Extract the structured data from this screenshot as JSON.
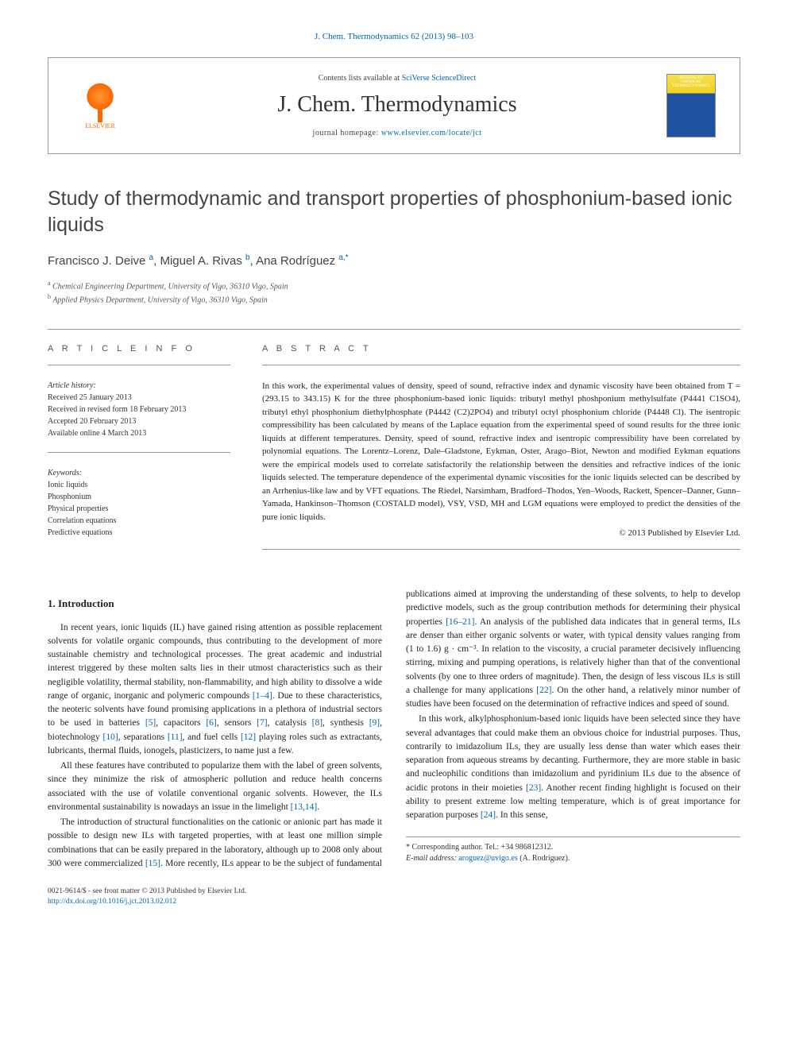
{
  "journal_ref": "J. Chem. Thermodynamics 62 (2013) 98–103",
  "header": {
    "contents_prefix": "Contents lists available at ",
    "contents_link": "SciVerse ScienceDirect",
    "journal_name": "J. Chem. Thermodynamics",
    "homepage_prefix": "journal homepage: ",
    "homepage_link": "www.elsevier.com/locate/jct",
    "elsevier_label": "ELSEVIER",
    "thumb_label": "JOURNAL OF CHEMICAL THERMODYNAMICS"
  },
  "title": "Study of thermodynamic and transport properties of phosphonium-based ionic liquids",
  "authors_html": "Francisco J. Deive <sup class='sup'>a</sup>, Miguel A. Rivas <sup class='sup'>b</sup>, Ana Rodríguez <sup class='sup'>a,*</sup>",
  "affiliations": {
    "a": "Chemical Engineering Department, University of Vigo, 36310 Vigo, Spain",
    "b": "Applied Physics Department, University of Vigo, 36310 Vigo, Spain"
  },
  "article_info": {
    "heading": "A R T I C L E   I N F O",
    "history_label": "Article history:",
    "received": "Received 25 January 2013",
    "revised": "Received in revised form 18 February 2013",
    "accepted": "Accepted 20 February 2013",
    "online": "Available online 4 March 2013",
    "keywords_label": "Keywords:",
    "keywords": [
      "Ionic liquids",
      "Phosphonium",
      "Physical properties",
      "Correlation equations",
      "Predictive equations"
    ]
  },
  "abstract": {
    "heading": "A B S T R A C T",
    "text": "In this work, the experimental values of density, speed of sound, refractive index and dynamic viscosity have been obtained from T = (293.15 to 343.15) K for the three phosphonium-based ionic liquids: tributyl methyl phoshponium methylsulfate (P4441 C1SO4), tributyl ethyl phosphonium diethylphosphate (P4442 (C2)2PO4) and tributyl octyl phosphonium chloride (P4448 Cl). The isentropic compressibility has been calculated by means of the Laplace equation from the experimental speed of sound results for the three ionic liquids at different temperatures. Density, speed of sound, refractive index and isentropic compressibility have been correlated by polynomial equations. The Lorentz–Lorenz, Dale–Gladstone, Eykman, Oster, Arago–Biot, Newton and modified Eykman equations were the empirical models used to correlate satisfactorily the relationship between the densities and refractive indices of the ionic liquids selected. The temperature dependence of the experimental dynamic viscosities for the ionic liquids selected can be described by an Arrhenius-like law and by VFT equations. The Riedel, Narsimham, Bradford–Thodos, Yen–Woods, Rackett, Spencer–Danner, Gunn–Yamada, Hankinson–Thomson (COSTALD model), VSY, VSD, MH and LGM equations were employed to predict the densities of the pure ionic liquids.",
    "copyright": "© 2013 Published by Elsevier Ltd."
  },
  "section1": {
    "heading": "1. Introduction",
    "p1": "In recent years, ionic liquids (IL) have gained rising attention as possible replacement solvents for volatile organic compounds, thus contributing to the development of more sustainable chemistry and technological processes. The great academic and industrial interest triggered by these molten salts lies in their utmost characteristics such as their negligible volatility, thermal stability, non-flammability, and high ability to dissolve a wide range of organic, inorganic and polymeric compounds [1–4]. Due to these characteristics, the neoteric solvents have found promising applications in a plethora of industrial sectors to be used in batteries [5], capacitors [6], sensors [7], catalysis [8], synthesis [9], biotechnology [10], separations [11], and fuel cells [12] playing roles such as extractants, lubricants, thermal fluids, ionogels, plasticizers, to name just a few.",
    "p2": "All these features have contributed to popularize them with the label of green solvents, since they minimize the risk of atmospheric pollution and reduce health concerns associated with the use of volatile conventional organic solvents. However, the ILs environmental sustainability is nowadays an issue in the limelight [13,14].",
    "p3": "The introduction of structural functionalities on the cationic or anionic part has made it possible to design new ILs with targeted properties, with at least one million simple combinations that can be easily prepared in the laboratory, although up to 2008 only about 300 were commercialized [15]. More recently, ILs appear to be the subject of fundamental publications aimed at improving the understanding of these solvents, to help to develop predictive models, such as the group contribution methods for determining their physical properties [16–21]. An analysis of the published data indicates that in general terms, ILs are denser than either organic solvents or water, with typical density values ranging from (1 to 1.6) g · cm⁻³. In relation to the viscosity, a crucial parameter decisively influencing stirring, mixing and pumping operations, is relatively higher than that of the conventional solvents (by one to three orders of magnitude). Then, the design of less viscous ILs is still a challenge for many applications [22]. On the other hand, a relatively minor number of studies have been focused on the determination of refractive indices and speed of sound.",
    "p4": "In this work, alkylphosphonium-based ionic liquids have been selected since they have several advantages that could make them an obvious choice for industrial purposes. Thus, contrarily to imidazolium ILs, they are usually less dense than water which eases their separation from aqueous streams by decanting. Furthermore, they are more stable in basic and nucleophilic conditions than imidazolium and pyridinium ILs due to the absence of acidic protons in their moieties [23]. Another recent finding highlight is focused on their ability to present extreme low melting temperature, which is of great importance for separation purposes [24]. In this sense,"
  },
  "footnote": {
    "corresponding": "* Corresponding author. Tel.: +34 986812312.",
    "email_label": "E-mail address: ",
    "email": "aroguez@uvigo.es",
    "email_name": " (A. Rodríguez)."
  },
  "footer": {
    "issn": "0021-9614/$ - see front matter © 2013 Published by Elsevier Ltd.",
    "doi": "http://dx.doi.org/10.1016/j.jct.2013.02.012"
  },
  "colors": {
    "link": "#0066aa",
    "text": "#222222",
    "heading": "#444444",
    "elsevier_orange": "#ff6600"
  },
  "typography": {
    "body_font": "Georgia, Times New Roman, serif",
    "title_fontsize": 25,
    "journal_fontsize": 28,
    "body_fontsize": 11.5,
    "abstract_fontsize": 11,
    "info_fontsize": 10
  }
}
